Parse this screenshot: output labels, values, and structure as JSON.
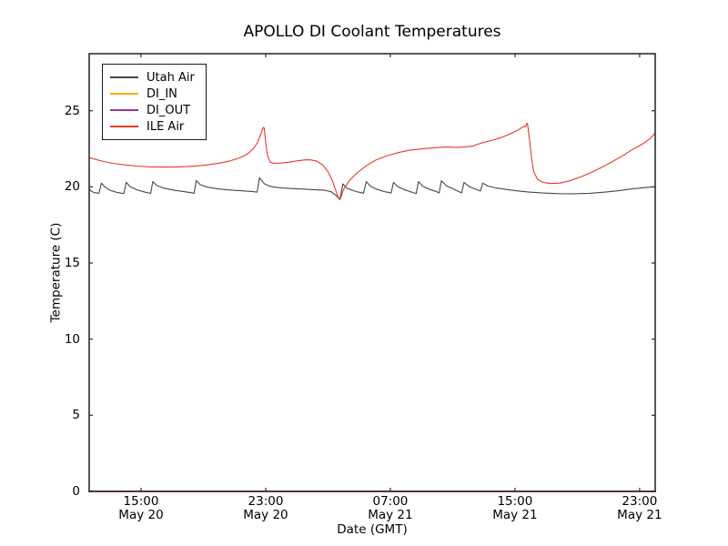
{
  "figure": {
    "background": "#ffffff",
    "axis_color": "#2e2e2e",
    "bottom_spine_color": "#54343c",
    "tick_length": 4
  },
  "chart_data": {
    "type": "line",
    "title": "APOLLO DI Coolant Temperatures",
    "xlabel": "Date (GMT)",
    "ylabel": "Temperature (C)",
    "grid": false,
    "legend_position": "upper-left",
    "x_axis_note": "x values encoded as hours since May 20 00:00 GMT",
    "xlim": [
      11.67,
      48
    ],
    "ylim": [
      0,
      28.75
    ],
    "y_ticks": [
      0,
      5,
      10,
      15,
      20,
      25
    ],
    "x_ticks": [
      {
        "t": 15,
        "time": "15:00",
        "date": "May 20"
      },
      {
        "t": 23,
        "time": "23:00",
        "date": "May 20"
      },
      {
        "t": 31,
        "time": "07:00",
        "date": "May 21"
      },
      {
        "t": 39,
        "time": "15:00",
        "date": "May 21"
      },
      {
        "t": 47,
        "time": "23:00",
        "date": "May 21"
      }
    ],
    "series": [
      {
        "name": "Utah Air",
        "color": "#474747",
        "points": [
          [
            11.67,
            19.9
          ],
          [
            11.8,
            19.72
          ],
          [
            12.0,
            19.63
          ],
          [
            12.3,
            19.58
          ],
          [
            12.45,
            20.25
          ],
          [
            12.7,
            19.98
          ],
          [
            13.0,
            19.78
          ],
          [
            13.4,
            19.65
          ],
          [
            13.75,
            19.59
          ],
          [
            13.9,
            19.58
          ],
          [
            14.05,
            20.3
          ],
          [
            14.3,
            20.02
          ],
          [
            14.7,
            19.82
          ],
          [
            15.15,
            19.68
          ],
          [
            15.5,
            19.6
          ],
          [
            15.62,
            19.58
          ],
          [
            15.75,
            20.35
          ],
          [
            16.0,
            20.1
          ],
          [
            16.45,
            19.92
          ],
          [
            17.0,
            19.8
          ],
          [
            17.7,
            19.7
          ],
          [
            18.2,
            19.62
          ],
          [
            18.4,
            19.58
          ],
          [
            18.55,
            20.42
          ],
          [
            18.8,
            20.14
          ],
          [
            19.25,
            19.98
          ],
          [
            19.9,
            19.88
          ],
          [
            20.6,
            19.8
          ],
          [
            21.4,
            19.75
          ],
          [
            22.1,
            19.7
          ],
          [
            22.45,
            19.66
          ],
          [
            22.6,
            20.6
          ],
          [
            22.9,
            20.22
          ],
          [
            23.25,
            20.04
          ],
          [
            23.75,
            19.96
          ],
          [
            24.5,
            19.9
          ],
          [
            25.3,
            19.86
          ],
          [
            26.1,
            19.82
          ],
          [
            26.8,
            19.78
          ],
          [
            27.2,
            19.68
          ],
          [
            27.5,
            19.45
          ],
          [
            27.7,
            19.25
          ],
          [
            27.78,
            19.24
          ],
          [
            27.95,
            20.2
          ],
          [
            28.2,
            19.93
          ],
          [
            28.55,
            19.78
          ],
          [
            28.95,
            19.66
          ],
          [
            29.28,
            19.59
          ],
          [
            29.45,
            20.35
          ],
          [
            29.75,
            20.03
          ],
          [
            30.15,
            19.84
          ],
          [
            30.65,
            19.68
          ],
          [
            31.05,
            19.6
          ],
          [
            31.2,
            20.3
          ],
          [
            31.5,
            20.0
          ],
          [
            31.95,
            19.8
          ],
          [
            32.45,
            19.63
          ],
          [
            32.66,
            19.57
          ],
          [
            32.8,
            20.35
          ],
          [
            33.1,
            20.04
          ],
          [
            33.55,
            19.83
          ],
          [
            33.98,
            19.68
          ],
          [
            34.13,
            19.6
          ],
          [
            34.28,
            20.4
          ],
          [
            34.6,
            20.08
          ],
          [
            35.05,
            19.86
          ],
          [
            35.42,
            19.68
          ],
          [
            35.58,
            19.61
          ],
          [
            35.73,
            20.3
          ],
          [
            36.05,
            20.03
          ],
          [
            36.45,
            19.86
          ],
          [
            36.78,
            19.73
          ],
          [
            36.93,
            20.25
          ],
          [
            37.25,
            20.06
          ],
          [
            37.75,
            19.94
          ],
          [
            38.4,
            19.84
          ],
          [
            39.1,
            19.74
          ],
          [
            39.9,
            19.66
          ],
          [
            40.8,
            19.6
          ],
          [
            41.8,
            19.56
          ],
          [
            42.8,
            19.55
          ],
          [
            43.8,
            19.58
          ],
          [
            44.8,
            19.66
          ],
          [
            45.7,
            19.76
          ],
          [
            46.5,
            19.87
          ],
          [
            47.2,
            19.94
          ],
          [
            47.7,
            19.99
          ],
          [
            48,
            20.0
          ]
        ]
      },
      {
        "name": "DI_IN",
        "color": "#ffa500",
        "points": [
          [
            11.67,
            0
          ],
          [
            48,
            0
          ]
        ]
      },
      {
        "name": "DI_OUT",
        "color": "#993399",
        "points": [
          [
            11.67,
            0
          ],
          [
            48,
            0
          ]
        ]
      },
      {
        "name": "ILE Air",
        "color": "#e8382c",
        "points": [
          [
            11.67,
            21.93
          ],
          [
            12.1,
            21.8
          ],
          [
            12.6,
            21.67
          ],
          [
            13.2,
            21.55
          ],
          [
            13.9,
            21.45
          ],
          [
            14.7,
            21.37
          ],
          [
            15.5,
            21.32
          ],
          [
            16.3,
            21.3
          ],
          [
            17.1,
            21.3
          ],
          [
            17.9,
            21.33
          ],
          [
            18.6,
            21.38
          ],
          [
            19.3,
            21.45
          ],
          [
            20.0,
            21.56
          ],
          [
            20.7,
            21.7
          ],
          [
            21.3,
            21.9
          ],
          [
            21.8,
            22.14
          ],
          [
            22.2,
            22.5
          ],
          [
            22.5,
            22.95
          ],
          [
            22.7,
            23.5
          ],
          [
            22.84,
            23.9
          ],
          [
            22.9,
            23.88
          ],
          [
            23.0,
            22.9
          ],
          [
            23.12,
            22.05
          ],
          [
            23.3,
            21.62
          ],
          [
            23.55,
            21.55
          ],
          [
            23.95,
            21.56
          ],
          [
            24.45,
            21.62
          ],
          [
            24.95,
            21.7
          ],
          [
            25.45,
            21.77
          ],
          [
            25.85,
            21.78
          ],
          [
            26.25,
            21.7
          ],
          [
            26.65,
            21.45
          ],
          [
            27.0,
            21.0
          ],
          [
            27.3,
            20.35
          ],
          [
            27.55,
            19.6
          ],
          [
            27.72,
            19.2
          ],
          [
            27.78,
            19.17
          ],
          [
            28.0,
            19.85
          ],
          [
            28.4,
            20.45
          ],
          [
            28.9,
            20.95
          ],
          [
            29.5,
            21.42
          ],
          [
            30.1,
            21.78
          ],
          [
            30.8,
            22.05
          ],
          [
            31.5,
            22.25
          ],
          [
            32.2,
            22.4
          ],
          [
            33.0,
            22.5
          ],
          [
            33.8,
            22.57
          ],
          [
            34.5,
            22.62
          ],
          [
            35.2,
            22.6
          ],
          [
            35.8,
            22.62
          ],
          [
            36.3,
            22.68
          ],
          [
            36.6,
            22.8
          ],
          [
            37.1,
            22.95
          ],
          [
            37.6,
            23.08
          ],
          [
            38.1,
            23.24
          ],
          [
            38.6,
            23.44
          ],
          [
            39.1,
            23.68
          ],
          [
            39.45,
            23.9
          ],
          [
            39.6,
            24.0
          ],
          [
            39.68,
            23.95
          ],
          [
            39.74,
            24.15
          ],
          [
            39.8,
            24.18
          ],
          [
            39.92,
            23.2
          ],
          [
            40.05,
            22.0
          ],
          [
            40.2,
            21.0
          ],
          [
            40.45,
            20.5
          ],
          [
            40.8,
            20.3
          ],
          [
            41.3,
            20.22
          ],
          [
            41.9,
            20.25
          ],
          [
            42.5,
            20.4
          ],
          [
            43.2,
            20.65
          ],
          [
            43.9,
            20.95
          ],
          [
            44.7,
            21.35
          ],
          [
            45.4,
            21.75
          ],
          [
            46.0,
            22.1
          ],
          [
            46.45,
            22.4
          ],
          [
            46.9,
            22.65
          ],
          [
            47.3,
            22.9
          ],
          [
            47.7,
            23.2
          ],
          [
            48,
            23.55
          ]
        ]
      }
    ]
  }
}
